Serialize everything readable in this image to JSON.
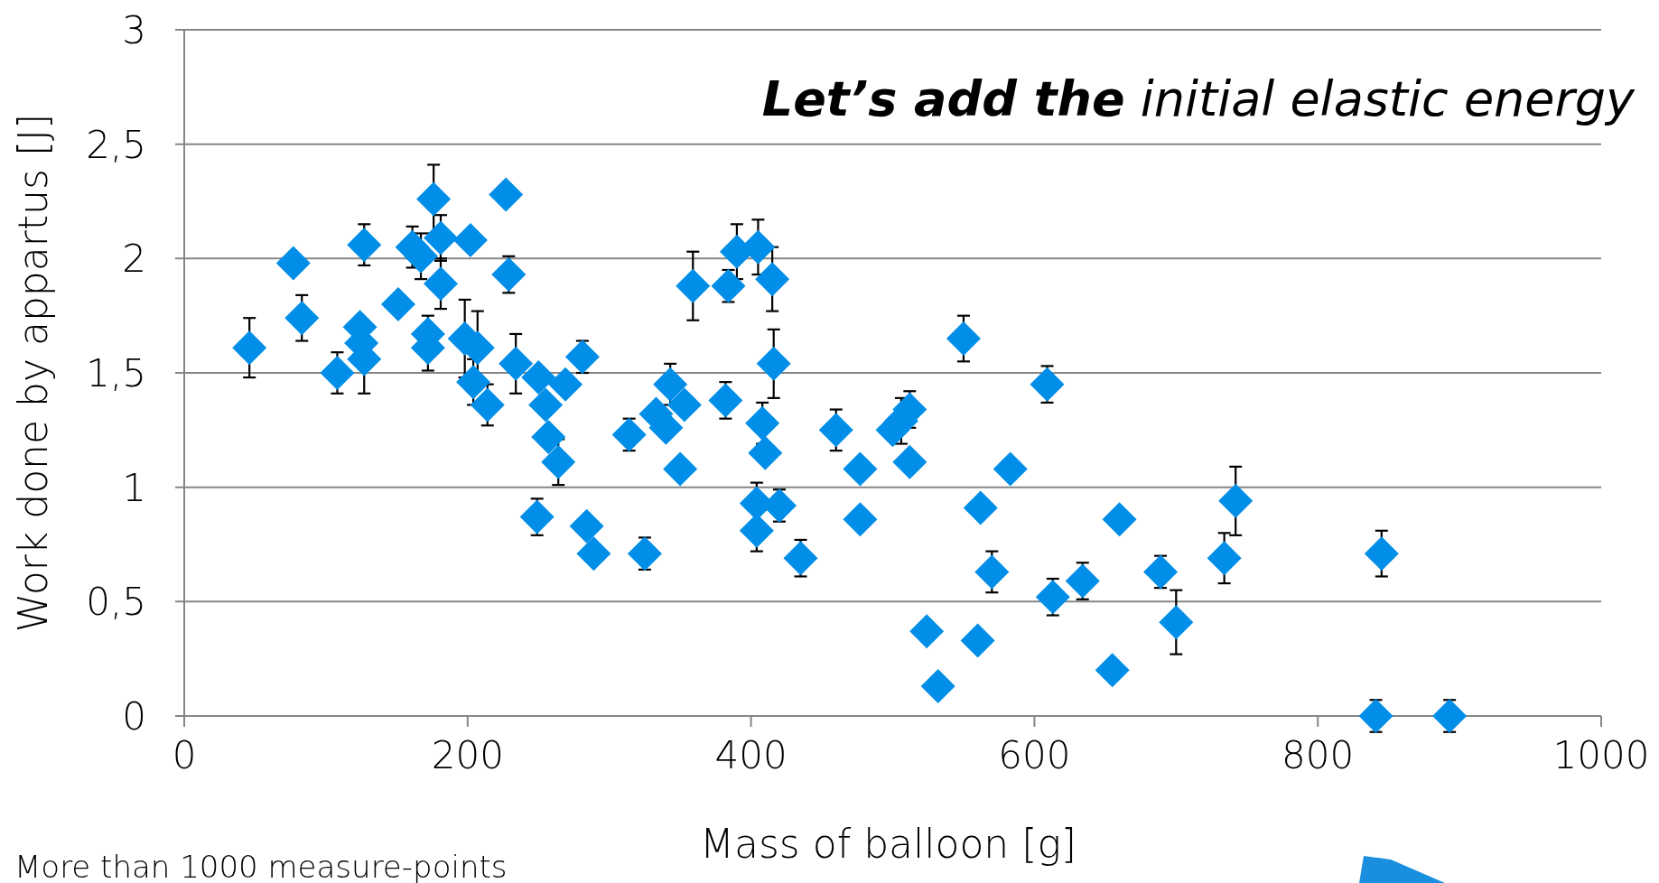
{
  "chart_data": {
    "type": "scatter",
    "title": "Let’s add the initial elastic energy",
    "xlabel": "Mass of balloon [g]",
    "ylabel": "Work done by appartus [J]",
    "annotations": [
      "More than 1000 measure-points"
    ],
    "xlim": [
      0,
      1000
    ],
    "xticks": [
      0,
      200,
      400,
      600,
      800,
      1000
    ],
    "ylim": [
      0,
      3
    ],
    "yticks": [
      0,
      {
        "value": 0.5,
        "label": "0,5"
      },
      1,
      {
        "value": 1.5,
        "label": "1,5"
      },
      2,
      {
        "value": 2.5,
        "label": "2,5"
      },
      3
    ],
    "grid": "y",
    "marker": "diamond",
    "series": [
      {
        "color": "#008ee8",
        "x": [
          46,
          77,
          83,
          108,
          127,
          124,
          125,
          127,
          151,
          161,
          167,
          172,
          172,
          176,
          181,
          181,
          202,
          198,
          207,
          204,
          214,
          227,
          229,
          234,
          250,
          255,
          257,
          264,
          249,
          269,
          281,
          284,
          289,
          314,
          325,
          333,
          340,
          343,
          353,
          350,
          359,
          382,
          384,
          390,
          405,
          415,
          416,
          408,
          410,
          404,
          404,
          420,
          435,
          460,
          477,
          477,
          500,
          506,
          512,
          512,
          524,
          532,
          550,
          562,
          560,
          570,
          583,
          609,
          613,
          634,
          660,
          655,
          689,
          700,
          734,
          742,
          845,
          841,
          893
        ],
        "values": [
          1.61,
          1.98,
          1.74,
          1.5,
          2.06,
          1.7,
          1.63,
          1.56,
          1.8,
          2.05,
          2.01,
          1.67,
          1.61,
          2.26,
          2.09,
          1.89,
          2.08,
          1.65,
          1.61,
          1.46,
          1.36,
          2.28,
          1.93,
          1.54,
          1.48,
          1.36,
          1.22,
          1.11,
          0.87,
          1.45,
          1.57,
          0.83,
          0.71,
          1.23,
          0.71,
          1.32,
          1.26,
          1.45,
          1.36,
          1.08,
          1.88,
          1.38,
          1.88,
          2.03,
          2.05,
          1.91,
          1.54,
          1.28,
          1.15,
          0.93,
          0.81,
          0.92,
          0.69,
          1.25,
          1.08,
          0.86,
          1.25,
          1.29,
          1.34,
          1.11,
          0.37,
          0.13,
          1.65,
          0.91,
          0.33,
          0.63,
          1.08,
          1.45,
          0.52,
          0.59,
          0.86,
          0.2,
          0.63,
          0.41,
          0.69,
          0.94,
          0.71,
          0,
          0
        ],
        "errors": [
          0.13,
          null,
          0.1,
          0.09,
          0.09,
          null,
          null,
          0.15,
          null,
          0.09,
          0.1,
          0.08,
          0.1,
          0.15,
          0.1,
          0.11,
          null,
          0.17,
          0.16,
          0.1,
          0.09,
          null,
          0.08,
          0.13,
          null,
          null,
          null,
          0.1,
          0.08,
          null,
          0.07,
          null,
          null,
          0.07,
          0.07,
          null,
          null,
          0.09,
          null,
          null,
          0.15,
          0.08,
          0.07,
          0.12,
          0.12,
          0.14,
          0.15,
          0.09,
          null,
          0.09,
          0.09,
          0.07,
          0.08,
          0.09,
          null,
          null,
          null,
          0.1,
          0.08,
          null,
          null,
          null,
          0.1,
          null,
          null,
          0.09,
          null,
          0.08,
          0.08,
          0.08,
          null,
          null,
          0.07,
          0.14,
          0.11,
          0.15,
          0.1,
          0.07,
          0.07
        ]
      }
    ]
  }
}
